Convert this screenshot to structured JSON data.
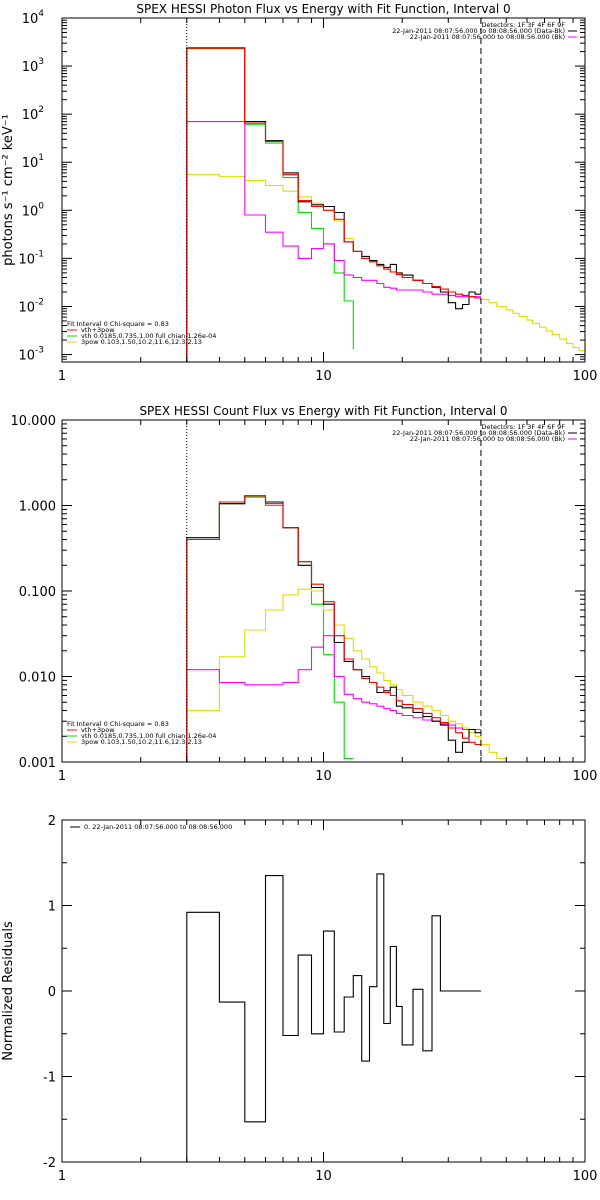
{
  "panels": [
    {
      "type": "step",
      "title": "SPEX HESSI Photon Flux vs Energy with Fit Function, Interval 0",
      "ylabel": "photons s⁻¹ cm⁻² keV⁻¹",
      "xscale": "log",
      "yscale": "log",
      "xlim": [
        1,
        100
      ],
      "ylim": [
        0.0007,
        10000
      ],
      "x_ticks": [
        {
          "v": 1,
          "label": "1"
        },
        {
          "v": 10,
          "label": "10"
        },
        {
          "v": 100,
          "label": "100"
        }
      ],
      "y_ticks": [
        {
          "v": 0.001,
          "label": "10",
          "exp": "-3"
        },
        {
          "v": 0.01,
          "label": "10",
          "exp": "-2"
        },
        {
          "v": 0.1,
          "label": "10",
          "exp": "-1"
        },
        {
          "v": 1,
          "label": "10",
          "exp": "0"
        },
        {
          "v": 10,
          "label": "10",
          "exp": "1"
        },
        {
          "v": 100,
          "label": "10",
          "exp": "2"
        },
        {
          "v": 1000,
          "label": "10",
          "exp": "3"
        },
        {
          "v": 10000,
          "label": "10",
          "exp": "4"
        }
      ],
      "vlines": [
        {
          "x": 3,
          "style": "dotted"
        },
        {
          "x": 40,
          "style": "dashed"
        }
      ],
      "legend_top": [
        {
          "text": "Detectors: 1F 3F 4F 6F 9F"
        },
        {
          "text": "22-Jan-2011 08:07:56.000 to 08:08:56.000 (Data-Bk)",
          "color": "#000000"
        },
        {
          "text": "22-Jan-2011 08:07:56.000 to 08:08:56.000 (Bk)",
          "color": "#ff00ff"
        }
      ],
      "legend_bottom": [
        {
          "text": "Fit Interval 0   Chi-square = 0.83"
        },
        {
          "text": "vth+3pow",
          "color": "#ff0000"
        },
        {
          "text": "vth 0.0185,0.735,1.00  full chian 1.26e-04",
          "color": "#00dd00"
        },
        {
          "text": "3pow 0.103,1.50,10.2,11.6,12.3,2.13",
          "color": "#dddd00"
        }
      ],
      "series": [
        {
          "color": "#00dd00",
          "edges": [
            3,
            4,
            5,
            6,
            7,
            8,
            9,
            10,
            11,
            12,
            13
          ],
          "values": [
            2300,
            2300,
            60,
            25,
            4.8,
            0.9,
            0.42,
            0.2,
            0.05,
            0.013,
            0.0013
          ]
        },
        {
          "color": "#dddd00",
          "edges": [
            3,
            4,
            5,
            6,
            7,
            8,
            9,
            10,
            11,
            12,
            13,
            14,
            15,
            16,
            17,
            18,
            19,
            20,
            22,
            24,
            26,
            28,
            30,
            32,
            34,
            36,
            38,
            40,
            43,
            46,
            50,
            53,
            56,
            60,
            63,
            67,
            71,
            75,
            80,
            85,
            90,
            95,
            100
          ],
          "values": [
            5.5,
            5,
            4.2,
            3.3,
            2.5,
            1.9,
            1.4,
            1,
            0.6,
            0.26,
            0.14,
            0.1,
            0.085,
            0.07,
            0.06,
            0.052,
            0.046,
            0.04,
            0.035,
            0.03,
            0.026,
            0.023,
            0.02,
            0.018,
            0.017,
            0.016,
            0.015,
            0.014,
            0.012,
            0.01,
            0.0085,
            0.0072,
            0.0062,
            0.0052,
            0.0044,
            0.0037,
            0.0031,
            0.0026,
            0.0021,
            0.0017,
            0.0014,
            0.0012
          ]
        },
        {
          "color": "#ff00ff",
          "edges": [
            3,
            4,
            5,
            6,
            7,
            8,
            9,
            10,
            11,
            12,
            13,
            14,
            15,
            16,
            17,
            18,
            19,
            20,
            22,
            24,
            26,
            28,
            30,
            32,
            34,
            36,
            38,
            40
          ],
          "values": [
            70,
            70,
            0.8,
            0.35,
            0.18,
            0.1,
            0.16,
            0.2,
            0.09,
            0.045,
            0.04,
            0.035,
            0.035,
            0.03,
            0.025,
            0.024,
            0.022,
            0.022,
            0.022,
            0.02,
            0.018,
            0.018,
            0.017,
            0.016,
            0.016,
            0.016,
            0.016
          ]
        },
        {
          "color": "#000000",
          "edges": [
            3,
            4,
            5,
            6,
            7,
            8,
            9,
            10,
            11,
            12,
            13,
            14,
            15,
            16,
            17,
            18,
            19,
            20,
            22,
            24,
            26,
            28,
            30,
            32,
            34,
            36,
            38,
            40
          ],
          "values": [
            2400,
            2400,
            70,
            28,
            6,
            1.5,
            1.3,
            1.2,
            0.9,
            0.22,
            0.14,
            0.11,
            0.09,
            0.075,
            0.065,
            0.075,
            0.05,
            0.045,
            0.035,
            0.03,
            0.025,
            0.02,
            0.012,
            0.009,
            0.011,
            0.02,
            0.018
          ]
        },
        {
          "color": "#ff0000",
          "edges": [
            3,
            4,
            5,
            6,
            7,
            8,
            9,
            10,
            11,
            12,
            13,
            14,
            15,
            16,
            17,
            18,
            19,
            20,
            22,
            24,
            26,
            28,
            30,
            32,
            34,
            36,
            38,
            40
          ],
          "values": [
            2350,
            2350,
            65,
            27,
            5.5,
            1.6,
            1.2,
            1,
            0.65,
            0.22,
            0.14,
            0.1,
            0.085,
            0.07,
            0.06,
            0.052,
            0.046,
            0.04,
            0.035,
            0.03,
            0.026,
            0.023,
            0.02,
            0.018,
            0.017,
            0.016,
            0.015
          ]
        }
      ]
    },
    {
      "type": "step",
      "title": "SPEX HESSI Count Flux vs Energy with Fit Function, Interval 0",
      "ylabel": "",
      "xscale": "log",
      "yscale": "log",
      "xlim": [
        1,
        100
      ],
      "ylim": [
        0.001,
        10
      ],
      "x_ticks": [
        {
          "v": 1,
          "label": "1"
        },
        {
          "v": 10,
          "label": "10"
        },
        {
          "v": 100,
          "label": "100"
        }
      ],
      "y_ticks": [
        {
          "v": 0.001,
          "label": "0.001"
        },
        {
          "v": 0.01,
          "label": "0.010"
        },
        {
          "v": 0.1,
          "label": "0.100"
        },
        {
          "v": 1,
          "label": "1.000"
        },
        {
          "v": 10,
          "label": "10.000"
        }
      ],
      "vlines": [
        {
          "x": 3,
          "style": "dotted"
        },
        {
          "x": 40,
          "style": "dashed"
        }
      ],
      "legend_top": [
        {
          "text": "Detectors: 1F 3F 4F 6F 9F"
        },
        {
          "text": "22-Jan-2011 08:07:56.000 to 08:08:56.000 (Data-Bk)",
          "color": "#000000"
        },
        {
          "text": "22-Jan-2011 08:07:56.000 to 08:08:56.000 (Bk)",
          "color": "#ff00ff"
        }
      ],
      "legend_bottom": [
        {
          "text": "Fit Interval 0   Chi-square = 0.83"
        },
        {
          "text": "vth+3pow",
          "color": "#ff0000"
        },
        {
          "text": "vth 0.0185,0.735,1.00  full chian 1.26e-04",
          "color": "#00dd00"
        },
        {
          "text": "3pow 0.103,1.50,10.2,11.6,12.3,2.13",
          "color": "#dddd00"
        }
      ],
      "series": [
        {
          "color": "#00dd00",
          "edges": [
            3,
            4,
            5,
            6,
            7,
            8,
            9,
            10,
            11,
            12,
            13
          ],
          "values": [
            0.4,
            1.05,
            1.25,
            1.0,
            0.55,
            0.22,
            0.07,
            0.018,
            0.005,
            0.0011
          ]
        },
        {
          "color": "#dddd00",
          "edges": [
            3,
            4,
            5,
            6,
            7,
            8,
            9,
            10,
            11,
            12,
            13,
            14,
            15,
            16,
            17,
            18,
            19,
            20,
            22,
            24,
            26,
            28,
            30,
            32,
            34,
            36,
            38,
            40,
            43,
            46,
            50,
            53,
            56
          ],
          "values": [
            0.004,
            0.017,
            0.035,
            0.06,
            0.09,
            0.105,
            0.1,
            0.06,
            0.04,
            0.028,
            0.02,
            0.016,
            0.013,
            0.011,
            0.009,
            0.008,
            0.007,
            0.006,
            0.005,
            0.0045,
            0.004,
            0.0035,
            0.003,
            0.0028,
            0.0025,
            0.0022,
            0.002,
            0.0016,
            0.0013,
            0.0011,
            0.0009,
            0.0008
          ]
        },
        {
          "color": "#ff00ff",
          "edges": [
            3,
            4,
            5,
            6,
            7,
            8,
            9,
            10,
            11,
            12,
            13,
            14,
            15,
            16,
            17,
            18,
            19,
            20,
            22,
            24,
            26,
            28,
            30,
            32,
            34,
            36,
            38,
            40
          ],
          "values": [
            0.012,
            0.0085,
            0.008,
            0.008,
            0.0085,
            0.012,
            0.022,
            0.03,
            0.01,
            0.0062,
            0.0055,
            0.005,
            0.0048,
            0.0045,
            0.0042,
            0.004,
            0.0037,
            0.0035,
            0.0033,
            0.0031,
            0.003,
            0.0028,
            0.0027,
            0.0025,
            0.0024,
            0.0024,
            0.0024
          ]
        },
        {
          "color": "#000000",
          "edges": [
            3,
            4,
            5,
            6,
            7,
            8,
            9,
            10,
            11,
            12,
            13,
            14,
            15,
            16,
            17,
            18,
            19,
            20,
            22,
            24,
            26,
            28,
            30,
            32,
            34,
            36,
            38,
            40
          ],
          "values": [
            0.42,
            1.05,
            1.3,
            1.1,
            0.55,
            0.2,
            0.11,
            0.07,
            0.025,
            0.015,
            0.012,
            0.01,
            0.0085,
            0.0065,
            0.0068,
            0.0075,
            0.0045,
            0.0043,
            0.0038,
            0.0034,
            0.003,
            0.0027,
            0.0018,
            0.0013,
            0.0017,
            0.0024,
            0.0022
          ]
        },
        {
          "color": "#ff0000",
          "edges": [
            3,
            4,
            5,
            6,
            7,
            8,
            9,
            10,
            11,
            12,
            13,
            14,
            15,
            16,
            17,
            18,
            19,
            20,
            22,
            24,
            26,
            28,
            30,
            32,
            34,
            36,
            38,
            40
          ],
          "values": [
            0.4,
            1.1,
            1.3,
            1.05,
            0.55,
            0.22,
            0.12,
            0.075,
            0.03,
            0.016,
            0.012,
            0.0095,
            0.0085,
            0.0075,
            0.0065,
            0.006,
            0.0052,
            0.0047,
            0.0042,
            0.0037,
            0.0033,
            0.0029,
            0.0025,
            0.0022,
            0.0019,
            0.0017,
            0.0016
          ]
        }
      ]
    },
    {
      "type": "step",
      "title": "",
      "ylabel": "Normalized Residuals",
      "xscale": "log",
      "yscale": "linear",
      "xlim": [
        1,
        100
      ],
      "ylim": [
        -2,
        2
      ],
      "x_ticks": [
        {
          "v": 1,
          "label": "1"
        },
        {
          "v": 10,
          "label": "10"
        },
        {
          "v": 100,
          "label": "100"
        }
      ],
      "y_ticks": [
        {
          "v": -2,
          "label": "-2"
        },
        {
          "v": -1,
          "label": "-1"
        },
        {
          "v": 0,
          "label": "0"
        },
        {
          "v": 1,
          "label": "1"
        },
        {
          "v": 2,
          "label": "2"
        }
      ],
      "vlines": [],
      "legend_top": [
        {
          "text": "0. 22-Jan-2011 08:07:56.000 to 08:08:56.000",
          "color": "#000000",
          "align": "left"
        }
      ],
      "legend_bottom": [],
      "series": [
        {
          "color": "#000000",
          "edges": [
            3,
            4,
            5,
            6,
            7,
            8,
            9,
            10,
            11,
            12,
            13,
            14,
            15,
            16,
            17,
            18,
            19,
            20,
            22,
            24,
            26,
            28,
            30,
            32,
            34,
            36,
            38,
            40
          ],
          "values": [
            0.92,
            -0.13,
            -1.53,
            1.35,
            -0.52,
            0.42,
            -0.5,
            0.7,
            -0.48,
            -0.07,
            0.18,
            -0.82,
            0.05,
            1.37,
            -0.38,
            0.52,
            -0.18,
            -0.63,
            0.02,
            -0.7,
            0.88,
            0.0,
            0.0,
            0.0,
            0.0,
            0.0,
            0.0
          ]
        }
      ],
      "first_drop_to_bottom": true
    }
  ],
  "chart_data": [
    {
      "type": "line",
      "title": "SPEX HESSI Photon Flux vs Energy with Fit Function, Interval 0",
      "ylabel": "photons s⁻¹ cm⁻² keV⁻¹",
      "xlim": [
        1,
        100
      ],
      "ylim": [
        0.0007,
        10000
      ],
      "yscale": "log",
      "xscale": "log"
    },
    {
      "type": "line",
      "title": "SPEX HESSI Count Flux vs Energy with Fit Function, Interval 0",
      "xlim": [
        1,
        100
      ],
      "ylim": [
        0.001,
        10
      ],
      "yscale": "log",
      "xscale": "log"
    },
    {
      "type": "line",
      "ylabel": "Normalized Residuals",
      "xlim": [
        1,
        100
      ],
      "ylim": [
        -2,
        2
      ],
      "xscale": "log"
    }
  ]
}
